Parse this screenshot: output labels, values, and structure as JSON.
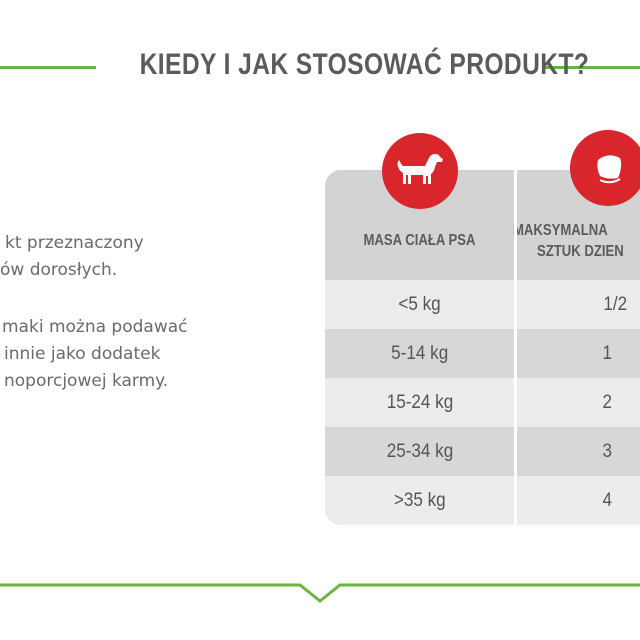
{
  "title": "KIEDY I JAK STOSOWAĆ PRODUKT?",
  "description": [
    "kt przeznaczony",
    "ów dorosłych.",
    "maki można podawać",
    "innie jako dodatek",
    "noporcjowej karmy."
  ],
  "table": {
    "headers": [
      {
        "lines": [
          "MASA CIAŁA PSA"
        ],
        "icon": "dog-icon"
      },
      {
        "lines": [
          "MAKSYMALNA",
          "SZTUK DZIEN"
        ],
        "icon": "treat-icon"
      }
    ],
    "rows": [
      [
        "<5 kg",
        "1/2"
      ],
      [
        "5-14 kg",
        "1"
      ],
      [
        "15-24 kg",
        "2"
      ],
      [
        "25-34 kg",
        "3"
      ],
      [
        ">35 kg",
        "4"
      ]
    ]
  },
  "colors": {
    "accent_green": "#6cb33f",
    "icon_red": "#d9262c",
    "text_gray": "#5b5b5b"
  }
}
